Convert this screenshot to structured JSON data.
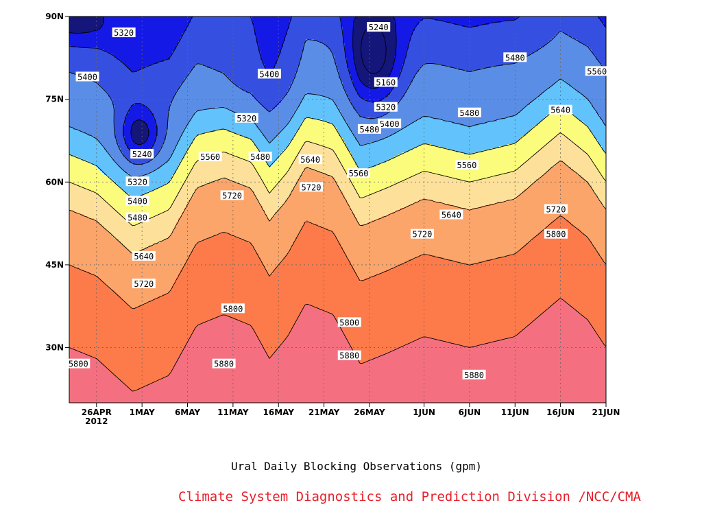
{
  "chart_data": {
    "type": "contour",
    "caption": "Ural Daily Blocking Observations (gpm)",
    "credit": "Climate System Diagnostics and Prediction Division /NCC/CMA",
    "x_ticks": [
      {
        "label": "26APR",
        "sub": "2012",
        "day": 0
      },
      {
        "label": "1MAY",
        "day": 5
      },
      {
        "label": "6MAY",
        "day": 10
      },
      {
        "label": "11MAY",
        "day": 15
      },
      {
        "label": "16MAY",
        "day": 20
      },
      {
        "label": "21MAY",
        "day": 25
      },
      {
        "label": "26MAY",
        "day": 30
      },
      {
        "label": "1JUN",
        "day": 36
      },
      {
        "label": "6JUN",
        "day": 41
      },
      {
        "label": "11JUN",
        "day": 46
      },
      {
        "label": "16JUN",
        "day": 51
      },
      {
        "label": "21JUN",
        "day": 56
      }
    ],
    "y_ticks": [
      {
        "label": "30N",
        "lat": 30
      },
      {
        "label": "45N",
        "lat": 45
      },
      {
        "label": "60N",
        "lat": 60
      },
      {
        "label": "75N",
        "lat": 75
      },
      {
        "label": "90N",
        "lat": 90
      }
    ],
    "xlim": [
      -3,
      56
    ],
    "ylim": [
      20,
      90
    ],
    "levels": [
      5160,
      5240,
      5320,
      5400,
      5480,
      5560,
      5640,
      5720,
      5800,
      5880
    ],
    "colors": {
      "5160": "#14167a",
      "5240": "#1419e6",
      "5320": "#3550e0",
      "5400": "#5a8ee6",
      "5480": "#62c2fb",
      "5560": "#fcfc7c",
      "5640": "#fde19a",
      "5720": "#fca56a",
      "5800": "#fd7b4a",
      "5880": "#f47080",
      "5960": "#f0364e"
    },
    "centers": [
      {
        "day": 4.8,
        "lat": 68.5,
        "value": 5200,
        "sx": 1.6,
        "sy": 3.5
      },
      {
        "day": 30.6,
        "lat": 82.0,
        "value": 5120,
        "sx": 2.0,
        "sy": 6.0
      },
      {
        "day": -2.8,
        "lat": 89.5,
        "value": 5180,
        "sx": 3.0,
        "sy": 3.0
      },
      {
        "day": 49.5,
        "lat": 86.0,
        "value": 5390,
        "sx": 2.8,
        "sy": 4.5
      },
      {
        "day": 17.5,
        "lat": 79.0,
        "value": 5360,
        "sx": 4.5,
        "sy": 7.0
      }
    ],
    "contour_labels": [
      {
        "text": "5320",
        "day": 3.0,
        "lat": 87.0
      },
      {
        "text": "5400",
        "day": -1.0,
        "lat": 79.0
      },
      {
        "text": "5400",
        "day": 19.0,
        "lat": 79.5
      },
      {
        "text": "5320",
        "day": 16.5,
        "lat": 71.5
      },
      {
        "text": "5240",
        "day": 31.0,
        "lat": 88.0
      },
      {
        "text": "5160",
        "day": 31.8,
        "lat": 78.0
      },
      {
        "text": "5320",
        "day": 31.8,
        "lat": 73.5
      },
      {
        "text": "5400",
        "day": 32.2,
        "lat": 70.5
      },
      {
        "text": "5480",
        "day": 30.0,
        "lat": 69.5
      },
      {
        "text": "5480",
        "day": 46.0,
        "lat": 82.5
      },
      {
        "text": "5560",
        "day": 55.0,
        "lat": 80.0
      },
      {
        "text": "5480",
        "day": 41.0,
        "lat": 72.5
      },
      {
        "text": "5640",
        "day": 51.0,
        "lat": 73.0
      },
      {
        "text": "5240",
        "day": 5.0,
        "lat": 65.0
      },
      {
        "text": "5560",
        "day": 12.5,
        "lat": 64.5
      },
      {
        "text": "5480",
        "day": 18.0,
        "lat": 64.5
      },
      {
        "text": "5640",
        "day": 23.5,
        "lat": 64.0
      },
      {
        "text": "5560",
        "day": 28.8,
        "lat": 61.5
      },
      {
        "text": "5560",
        "day": 40.7,
        "lat": 63.0
      },
      {
        "text": "5320",
        "day": 4.5,
        "lat": 60.0
      },
      {
        "text": "5400",
        "day": 4.5,
        "lat": 56.5
      },
      {
        "text": "5480",
        "day": 4.5,
        "lat": 53.5
      },
      {
        "text": "5720",
        "day": 14.9,
        "lat": 57.5
      },
      {
        "text": "5720",
        "day": 23.6,
        "lat": 59.0
      },
      {
        "text": "5640",
        "day": 39.0,
        "lat": 54.0
      },
      {
        "text": "5720",
        "day": 50.5,
        "lat": 55.0
      },
      {
        "text": "5720",
        "day": 35.8,
        "lat": 50.5
      },
      {
        "text": "5800",
        "day": 50.5,
        "lat": 50.5
      },
      {
        "text": "5640",
        "day": 5.2,
        "lat": 46.5
      },
      {
        "text": "5720",
        "day": 5.2,
        "lat": 41.5
      },
      {
        "text": "5800",
        "day": 15.0,
        "lat": 37.0
      },
      {
        "text": "5800",
        "day": 27.8,
        "lat": 34.5
      },
      {
        "text": "5800",
        "day": -2.0,
        "lat": 27.0
      },
      {
        "text": "5880",
        "day": 14.0,
        "lat": 27.0
      },
      {
        "text": "5880",
        "day": 27.8,
        "lat": 28.5
      },
      {
        "text": "5880",
        "day": 41.5,
        "lat": 25.0
      }
    ]
  }
}
